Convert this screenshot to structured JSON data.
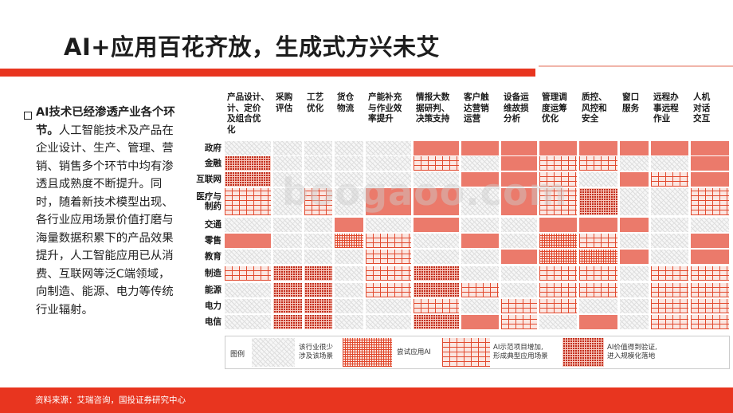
{
  "title": "AI+应用百花齐放，生成式方兴未艾",
  "intro_bold": "AI技术已经渗透产业各个环节。",
  "intro_body": "人工智能技术及产品在企业设计、生产、管理、营销、销售多个环节中均有渗透且成熟度不断提升。同时，随着新技术模型出现、各行业应用场景价值打磨与海量数据积累下的产品效果提升，人工智能应用已从消费、互联网等泛C端领域，向制造、能源、电力等传统行业辐射。",
  "columns": [
    "产品设计、\n计、定价\n及组合优\n化",
    "采购\n评估",
    "工艺\n优化",
    "货仓\n物流",
    "产能补充\n与作业效\n率提升",
    "情报大数\n据研判、\n决策支持",
    "客户触\n达营销\n运营",
    "设备运\n维故损\n分析",
    "管理调\n度运筹\n优化",
    "质控、\n风控和\n安全",
    "窗口\n服务",
    "远程办\n事远程\n作业",
    "人机\n对话\n交互"
  ],
  "rows": [
    "政府",
    "金融",
    "互联网",
    "医疗与\n制药",
    "交通",
    "零售",
    "教育",
    "制造",
    "能源",
    "电力",
    "电信"
  ],
  "matrix": [
    [
      0,
      0,
      0,
      0,
      0,
      4,
      4,
      4,
      4,
      4,
      4,
      4,
      4
    ],
    [
      3,
      0,
      0,
      0,
      0,
      2,
      0,
      4,
      2,
      2,
      0,
      0,
      4
    ],
    [
      3,
      0,
      0,
      0,
      0,
      0,
      4,
      4,
      2,
      0,
      4,
      2,
      4
    ],
    [
      2,
      0,
      2,
      0,
      4,
      4,
      0,
      4,
      2,
      3,
      0,
      0,
      2
    ],
    [
      0,
      0,
      0,
      4,
      0,
      4,
      0,
      0,
      4,
      4,
      4,
      0,
      0
    ],
    [
      4,
      0,
      0,
      1,
      2,
      0,
      4,
      0,
      1,
      2,
      0,
      0,
      4
    ],
    [
      0,
      0,
      0,
      0,
      2,
      0,
      0,
      4,
      1,
      1,
      4,
      0,
      4
    ],
    [
      2,
      3,
      3,
      0,
      2,
      3,
      0,
      0,
      2,
      2,
      0,
      2,
      2
    ],
    [
      0,
      3,
      3,
      0,
      2,
      3,
      2,
      0,
      2,
      2,
      0,
      2,
      2
    ],
    [
      0,
      3,
      3,
      0,
      0,
      2,
      0,
      2,
      2,
      0,
      0,
      2,
      2
    ],
    [
      0,
      3,
      3,
      0,
      0,
      3,
      4,
      2,
      0,
      4,
      0,
      2,
      2
    ]
  ],
  "legend": {
    "label": "图例",
    "items": [
      {
        "text": "该行业很少\n涉及该场景"
      },
      {
        "text": "尝试应用AI"
      },
      {
        "text": "AI示范项目增加,\n形成典型应用场景"
      },
      {
        "text": "AI价值得到验证,\n进入规模化落地"
      }
    ]
  },
  "source": "资料来源：艾瑞咨询，国投证券研究中心",
  "watermark": "boogaoo.com",
  "colors": {
    "accent": "#e8351f",
    "dark_red": "#c22d1b",
    "light_red": "#eb7a6b"
  }
}
